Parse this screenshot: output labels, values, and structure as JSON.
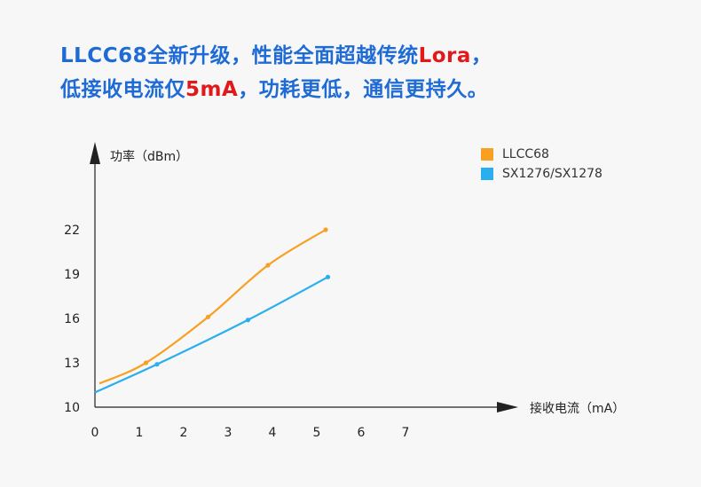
{
  "headline": {
    "line1_prefix": "LLCC68全新升级，性能全面超越传统",
    "line1_highlight": "Lora",
    "line1_suffix": "，",
    "line2_prefix": "低接收电流仅",
    "line2_highlight": "5mA",
    "line2_suffix": "，功耗更低，通信更持久。"
  },
  "colors": {
    "headline": "#1f6bd6",
    "highlight": "#e0191a",
    "llcc68": "#f7a022",
    "sx127x": "#29aef0",
    "axis": "#222222"
  },
  "chart_data": {
    "type": "line",
    "ylabel": "功率（dBm）",
    "xlabel": "接收电流（mA）",
    "x_ticks": [
      "0",
      "1",
      "2",
      "3",
      "4",
      "5",
      "6",
      "7"
    ],
    "y_ticks": [
      "10",
      "13",
      "16",
      "19",
      "22"
    ],
    "xlim": [
      0,
      7
    ],
    "ylim": [
      10,
      22
    ],
    "grid": false,
    "legend_position": "top-right",
    "series": [
      {
        "name": "LLCC68",
        "color": "#f7a022",
        "points": [
          [
            0.1,
            11.6
          ],
          [
            1.15,
            13.0
          ],
          [
            2.55,
            16.1
          ],
          [
            3.9,
            19.6
          ],
          [
            5.2,
            22.0
          ]
        ]
      },
      {
        "name": "SX1276/SX1278",
        "color": "#29aef0",
        "points": [
          [
            0.0,
            11.0
          ],
          [
            1.4,
            12.9
          ],
          [
            3.45,
            15.9
          ],
          [
            5.25,
            18.8
          ]
        ]
      }
    ]
  }
}
